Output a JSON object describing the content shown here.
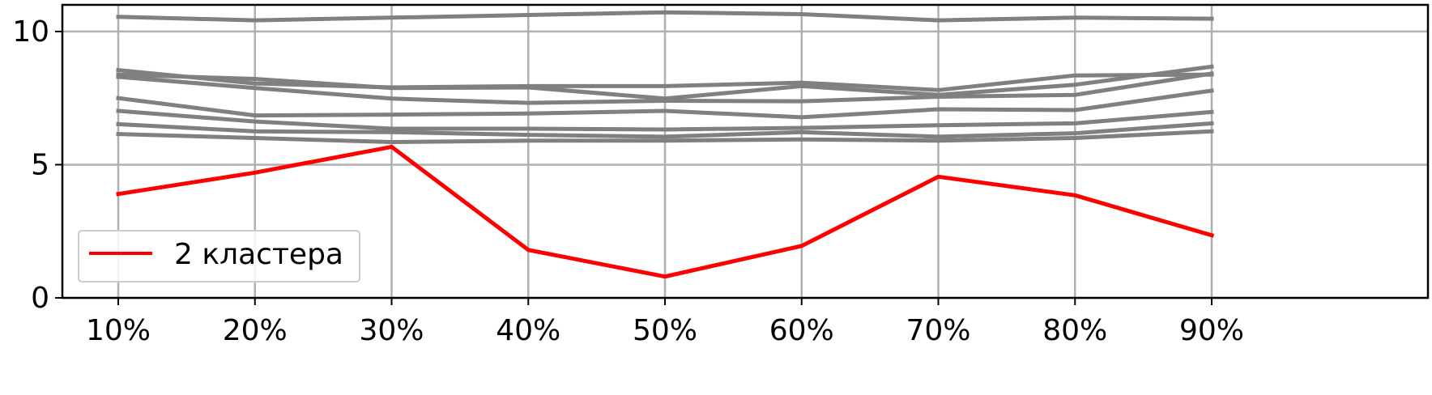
{
  "chart_data": {
    "type": "line",
    "x": [
      "10%",
      "20%",
      "30%",
      "40%",
      "50%",
      "60%",
      "70%",
      "80%",
      "90%"
    ],
    "ylim": [
      0,
      11
    ],
    "yticks": [
      0,
      5,
      10
    ],
    "grid": true,
    "legend": {
      "placement": "lower-left",
      "entries": [
        "2 кластера"
      ]
    },
    "colors": {
      "highlight": "#ff0000",
      "background_series": "#808080",
      "grid": "#b0b0b0"
    },
    "series": [
      {
        "name": "2 кластера",
        "color": "#ff0000",
        "values": [
          3.9,
          4.7,
          5.67,
          1.8,
          0.8,
          1.95,
          4.55,
          3.85,
          2.35
        ]
      },
      {
        "color": "#808080",
        "values": [
          10.55,
          10.42,
          10.52,
          10.62,
          10.72,
          10.65,
          10.42,
          10.52,
          10.48
        ]
      },
      {
        "color": "#808080",
        "values": [
          8.55,
          8.05,
          7.9,
          7.95,
          7.95,
          8.08,
          7.8,
          8.35,
          8.38
        ]
      },
      {
        "color": "#808080",
        "values": [
          8.38,
          8.22,
          7.88,
          7.9,
          7.48,
          7.95,
          7.62,
          8.0,
          8.68
        ]
      },
      {
        "color": "#808080",
        "values": [
          8.3,
          7.88,
          7.48,
          7.32,
          7.4,
          7.38,
          7.55,
          7.62,
          8.42
        ]
      },
      {
        "color": "#808080",
        "values": [
          7.5,
          6.85,
          6.88,
          6.92,
          7.02,
          6.78,
          7.08,
          7.05,
          7.78
        ]
      },
      {
        "color": "#808080",
        "values": [
          7.02,
          6.62,
          6.35,
          6.35,
          6.32,
          6.38,
          6.48,
          6.55,
          6.98
        ]
      },
      {
        "color": "#808080",
        "values": [
          6.52,
          6.25,
          6.22,
          6.12,
          6.05,
          6.22,
          6.05,
          6.18,
          6.55
        ]
      },
      {
        "color": "#808080",
        "values": [
          6.15,
          6.0,
          5.85,
          5.9,
          5.9,
          5.95,
          5.9,
          6.0,
          6.25
        ]
      }
    ]
  }
}
